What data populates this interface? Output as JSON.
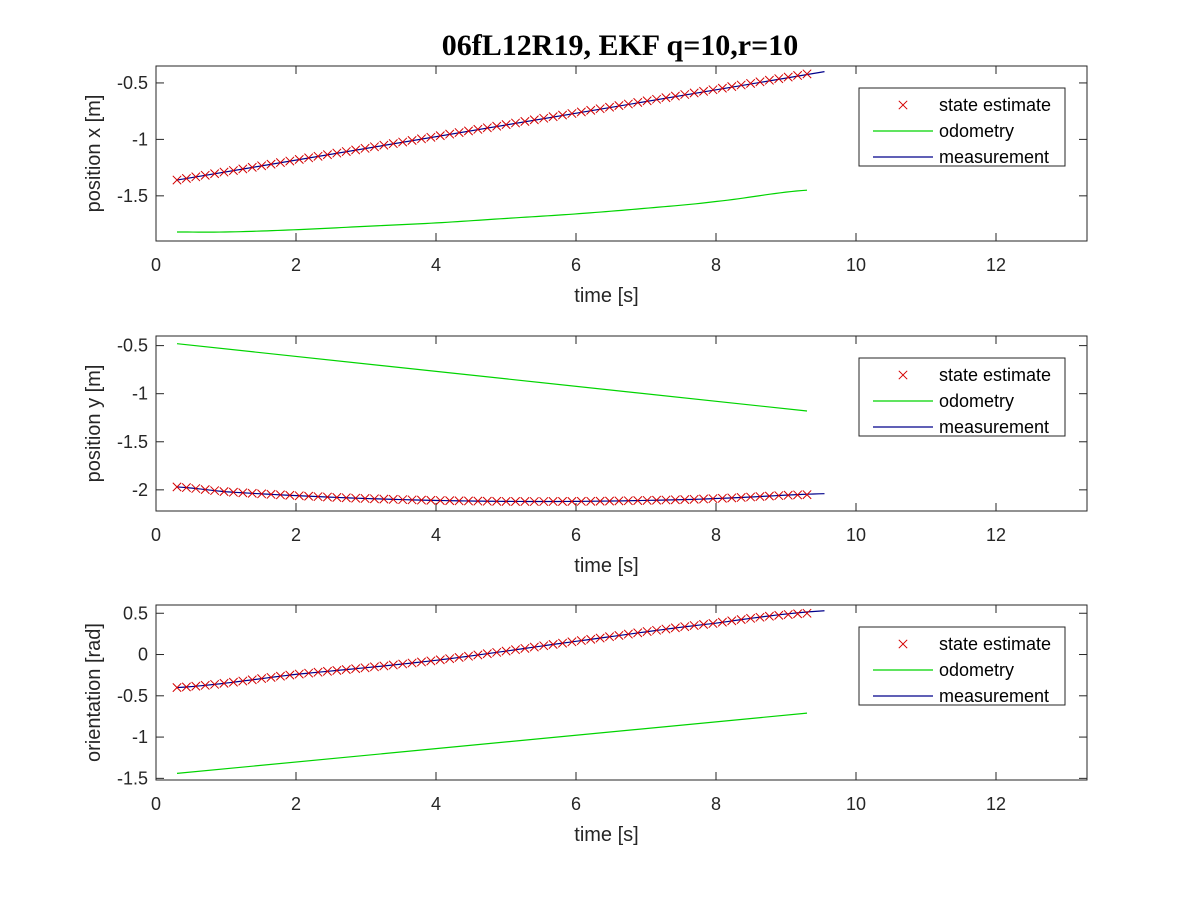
{
  "figure": {
    "title": "06fL12R19, EKF q=10,r=10"
  },
  "colors": {
    "state_estimate": "#d40000",
    "odometry": "#00d400",
    "measurement": "#00008b",
    "axis": "#262626"
  },
  "chart_data": [
    {
      "type": "line",
      "xlabel": "time [s]",
      "ylabel": "position x [m]",
      "xlim": [
        0,
        13.3
      ],
      "ylim": [
        -1.9,
        -0.35
      ],
      "xticks": [
        0,
        2,
        4,
        6,
        8,
        10,
        12
      ],
      "xtick_labels": [
        "0",
        "2",
        "4",
        "6",
        "8",
        "10",
        "12"
      ],
      "yticks": [
        -1.5,
        -1,
        -0.5
      ],
      "ytick_labels": [
        "-1.5",
        "-1",
        "-0.5"
      ],
      "grid": false,
      "legend_position": "top-right",
      "series": [
        {
          "name": "state estimate",
          "marker": "x",
          "x": [
            0.3,
            9.3
          ],
          "y": [
            -1.36,
            -0.42
          ],
          "n_points": 68,
          "curve": "linear"
        },
        {
          "name": "odometry",
          "x": [
            0.3,
            1,
            2,
            3,
            4,
            5,
            6,
            7,
            8,
            9.3
          ],
          "y": [
            -1.82,
            -1.82,
            -1.8,
            -1.77,
            -1.74,
            -1.7,
            -1.66,
            -1.61,
            -1.55,
            -1.45
          ]
        },
        {
          "name": "measurement",
          "x": [
            0.3,
            9.55
          ],
          "y": [
            -1.36,
            -0.4
          ],
          "curve": "linear"
        }
      ]
    },
    {
      "type": "line",
      "xlabel": "time [s]",
      "ylabel": "position y [m]",
      "xlim": [
        0,
        13.3
      ],
      "ylim": [
        -2.22,
        -0.4
      ],
      "xticks": [
        0,
        2,
        4,
        6,
        8,
        10,
        12
      ],
      "xtick_labels": [
        "0",
        "2",
        "4",
        "6",
        "8",
        "10",
        "12"
      ],
      "yticks": [
        -2,
        -1.5,
        -1,
        -0.5
      ],
      "ytick_labels": [
        "-2",
        "-1.5",
        "-1",
        "-0.5"
      ],
      "grid": false,
      "legend_position": "top-right",
      "series": [
        {
          "name": "state estimate",
          "marker": "x",
          "x": [
            0.3,
            1,
            2,
            3,
            4,
            5,
            6,
            7,
            8,
            9.3
          ],
          "y": [
            -1.97,
            -2.02,
            -2.06,
            -2.09,
            -2.11,
            -2.12,
            -2.12,
            -2.11,
            -2.09,
            -2.05
          ],
          "n_points": 68,
          "curve": "smooth"
        },
        {
          "name": "odometry",
          "x": [
            0.3,
            9.3
          ],
          "y": [
            -0.48,
            -1.18
          ],
          "curve": "linear"
        },
        {
          "name": "measurement",
          "x": [
            0.3,
            1,
            2,
            3,
            4,
            5,
            6,
            7,
            8,
            9.55
          ],
          "y": [
            -1.97,
            -2.02,
            -2.06,
            -2.09,
            -2.11,
            -2.12,
            -2.12,
            -2.11,
            -2.09,
            -2.04
          ],
          "curve": "smooth"
        }
      ]
    },
    {
      "type": "line",
      "xlabel": "time [s]",
      "ylabel": "orientation [rad]",
      "xlim": [
        0,
        13.3
      ],
      "ylim": [
        -1.52,
        0.6
      ],
      "xticks": [
        0,
        2,
        4,
        6,
        8,
        10,
        12
      ],
      "xtick_labels": [
        "0",
        "2",
        "4",
        "6",
        "8",
        "10",
        "12"
      ],
      "yticks": [
        -1.5,
        -1,
        -0.5,
        0,
        0.5
      ],
      "ytick_labels": [
        "-1.5",
        "-1",
        "-0.5",
        "0",
        "0.5"
      ],
      "grid": false,
      "legend_position": "top-right",
      "series": [
        {
          "name": "state estimate",
          "marker": "x",
          "x": [
            0.3,
            2,
            4,
            6,
            8,
            9.3
          ],
          "y": [
            -0.4,
            -0.24,
            -0.07,
            0.16,
            0.38,
            0.5
          ],
          "n_points": 68,
          "curve": "smooth"
        },
        {
          "name": "odometry",
          "x": [
            0.3,
            9.3
          ],
          "y": [
            -1.44,
            -0.71
          ],
          "curve": "linear"
        },
        {
          "name": "measurement",
          "x": [
            0.3,
            2,
            4,
            6,
            8,
            9.55
          ],
          "y": [
            -0.4,
            -0.24,
            -0.07,
            0.16,
            0.38,
            0.53
          ],
          "curve": "smooth"
        }
      ]
    }
  ]
}
